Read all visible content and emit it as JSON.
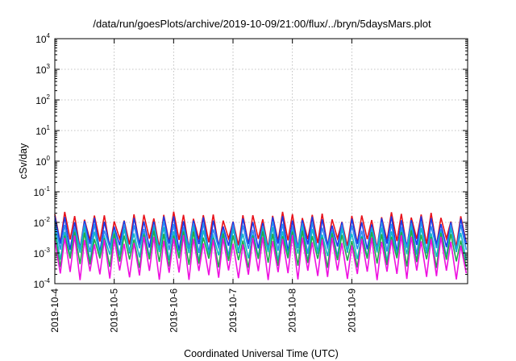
{
  "chart_data": {
    "type": "line",
    "title": "/data/run/goesPlots/archive/2019-10-09/21:00/flux/../bryn/5daysMars.plot",
    "xlabel": "Coordinated Universal Time (UTC)",
    "ylabel": "cSv/day",
    "yscale": "log",
    "ylim": [
      0.0001,
      10000
    ],
    "xlim_days": [
      0,
      6.95
    ],
    "grid": true,
    "legend": "none",
    "x_tick_labels": [
      "2019-10-4",
      "2019-10-5",
      "2019-10-6",
      "2019-10-7",
      "2019-10-8",
      "2019-10-9"
    ],
    "y_tick_labels": [
      {
        "base": "10",
        "exp": "-4"
      },
      {
        "base": "10",
        "exp": "-3"
      },
      {
        "base": "10",
        "exp": "-2"
      },
      {
        "base": "10",
        "exp": "-1"
      },
      {
        "base": "10",
        "exp": "0"
      },
      {
        "base": "10",
        "exp": "1"
      },
      {
        "base": "10",
        "exp": "2"
      },
      {
        "base": "10",
        "exp": "3"
      },
      {
        "base": "10",
        "exp": "4"
      }
    ],
    "cycle_days": 0.1667,
    "series": [
      {
        "color": "#e8101a",
        "peak": 0.016,
        "trough": 0.0022
      },
      {
        "color": "#1a3be8",
        "peak": 0.012,
        "trough": 0.0015
      },
      {
        "color": "#2a8af0",
        "peak": 0.008,
        "trough": 0.0011
      },
      {
        "color": "#13b8c8",
        "peak": 0.0055,
        "trough": 0.0008
      },
      {
        "color": "#22a84a",
        "peak": 0.004,
        "trough": 0.0005
      },
      {
        "color": "#ee10e0",
        "peak": 0.0028,
        "trough": 0.0002
      }
    ]
  }
}
